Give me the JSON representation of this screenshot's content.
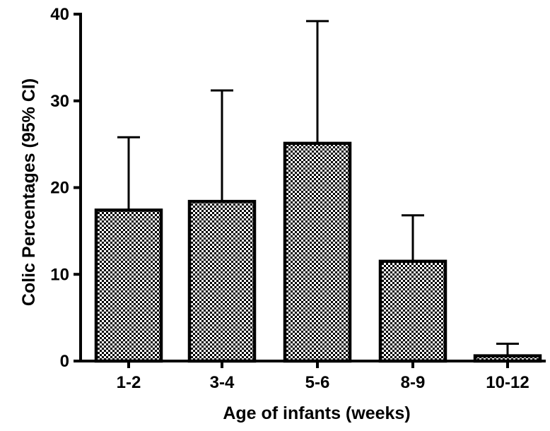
{
  "chart_data": {
    "type": "bar",
    "title": "",
    "xlabel": "Age of infants (weeks)",
    "ylabel": "Colic Percentages (95% CI)",
    "categories": [
      "1-2",
      "3-4",
      "5-6",
      "8-9",
      "10-12"
    ],
    "values": [
      17.4,
      18.4,
      25.1,
      11.5,
      0.6
    ],
    "error_upper": [
      25.8,
      31.2,
      39.2,
      16.8,
      2.0
    ],
    "ylim": [
      0,
      40
    ],
    "yticks": [
      0,
      10,
      20,
      30,
      40
    ],
    "grid": false,
    "legend": "none",
    "bar_fill": "checkerboard",
    "colors": {
      "bar_pattern_dark": "#000000",
      "bar_pattern_light": "#ffffff",
      "axis": "#000000"
    }
  }
}
